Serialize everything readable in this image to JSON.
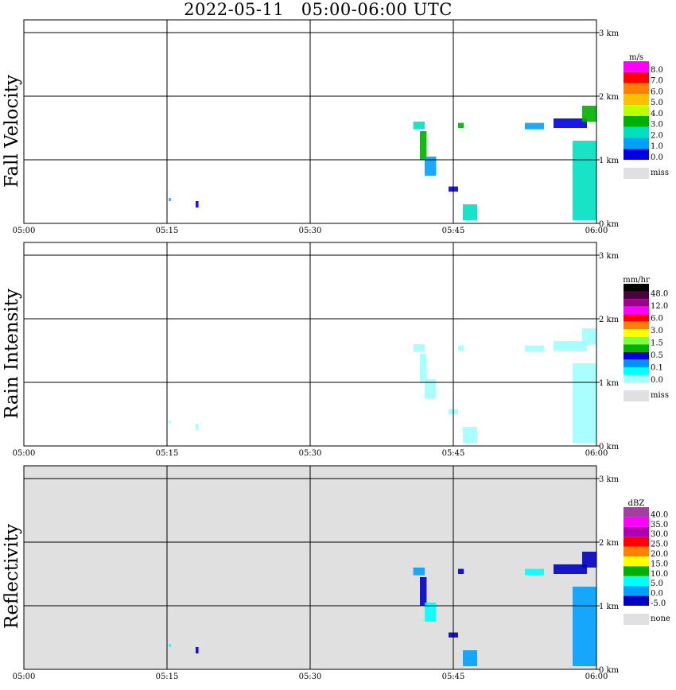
{
  "title": "2022-05-11   05:00-06:00 UTC",
  "colors": {
    "missing_fill": "#e0e0e0",
    "grid": "#000000"
  },
  "chart_data": [
    {
      "type": "heatmap",
      "panel_label": "Fall Velocity",
      "x_ticks": [
        "05:00",
        "05:15",
        "05:30",
        "05:45",
        "06:00"
      ],
      "y_ticks": [
        "0 km",
        "1 km",
        "2 km",
        "3 km"
      ],
      "xlim": [
        "05:00",
        "06:00"
      ],
      "ylim_km": [
        0,
        3.5
      ],
      "grid": true,
      "background": "white",
      "legend": {
        "unit": "m/s",
        "labels": [
          "8.0",
          "7.0",
          "6.0",
          "5.0",
          "4.0",
          "3.0",
          "2.0",
          "1.0",
          "0.0"
        ],
        "colors": [
          "#ff00ff",
          "#ff0000",
          "#ff7f00",
          "#ffc000",
          "#c0ff00",
          "#00b000",
          "#00e0c0",
          "#00a0ff",
          "#0000e0"
        ],
        "missing_label": "miss"
      }
    },
    {
      "type": "heatmap",
      "panel_label": "Rain Intensity",
      "x_ticks": [
        "05:00",
        "05:15",
        "05:30",
        "05:45",
        "06:00"
      ],
      "y_ticks": [
        "0 km",
        "1 km",
        "2 km",
        "3 km"
      ],
      "xlim": [
        "05:00",
        "06:00"
      ],
      "ylim_km": [
        0,
        3.5
      ],
      "grid": true,
      "background": "white",
      "legend": {
        "unit": "mm/hr",
        "labels": [
          "48.0",
          "12.0",
          "6.0",
          "3.0",
          "1.5",
          "0.5",
          "0.1",
          "0.0"
        ],
        "colors": [
          "#000000",
          "#500040",
          "#a00090",
          "#ff00ff",
          "#ff0000",
          "#ff7f00",
          "#ffff00",
          "#80ff40",
          "#00b000",
          "#0000e0",
          "#0090ff",
          "#00ffff",
          "#a0ffff"
        ],
        "missing_label": "miss"
      }
    },
    {
      "type": "heatmap",
      "panel_label": "Reflectivity",
      "x_ticks": [
        "05:00",
        "05:15",
        "05:30",
        "05:45",
        "06:00"
      ],
      "y_ticks": [
        "0 km",
        "1 km",
        "2 km",
        "3 km"
      ],
      "xlim": [
        "05:00",
        "06:00"
      ],
      "ylim_km": [
        0,
        3.5
      ],
      "grid": true,
      "background": "missing",
      "legend": {
        "unit": "dBZ",
        "labels": [
          "40.0",
          "35.0",
          "30.0",
          "25.0",
          "20.0",
          "15.0",
          "10.0",
          "5.0",
          "0.0",
          "-5.0"
        ],
        "colors": [
          "#a040a0",
          "#ff00ff",
          "#b000b0",
          "#ff0000",
          "#ff7f00",
          "#ffff00",
          "#00b000",
          "#00ffff",
          "#00a0ff",
          "#0000c0"
        ],
        "missing_label": "none"
      }
    }
  ]
}
